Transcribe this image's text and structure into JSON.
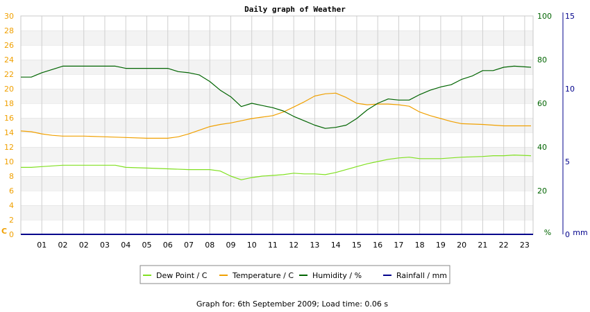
{
  "chart_data": {
    "type": "line",
    "title": "Daily graph of Weather",
    "footer": "Graph for: 6th September 2009; Load time: 0.06 s",
    "x_ticks": [
      "01",
      "02",
      "02",
      "03",
      "04",
      "05",
      "06",
      "07",
      "08",
      "09",
      "10",
      "11",
      "12",
      "13",
      "14",
      "15",
      "16",
      "17",
      "18",
      "19",
      "20",
      "21",
      "22",
      "23"
    ],
    "x_range": [
      0,
      24.4
    ],
    "left_axis": {
      "unit": "C",
      "range": [
        0,
        30
      ],
      "ticks": [
        0,
        2,
        4,
        6,
        8,
        10,
        12,
        14,
        16,
        18,
        20,
        22,
        24,
        26,
        28,
        30
      ],
      "color": "#f0a000"
    },
    "humidity_axis": {
      "unit": "%",
      "range": [
        0,
        100
      ],
      "ticks": [
        0,
        20,
        40,
        60,
        80,
        100
      ],
      "color": "#006400"
    },
    "rain_axis": {
      "unit": "mm",
      "range": [
        0,
        15
      ],
      "ticks": [
        0,
        5,
        10,
        15
      ],
      "color": "#00008b"
    },
    "grid": true,
    "legend_position": "bottom",
    "series": [
      {
        "name": "Dew Point / C",
        "color": "#80e020",
        "axis": "left",
        "x": [
          0,
          0.5,
          1,
          1.5,
          2,
          3,
          4,
          4.5,
          5,
          6,
          7,
          8,
          9,
          9.5,
          10,
          10.5,
          11,
          11.5,
          12,
          12.5,
          13,
          13.5,
          14,
          14.5,
          15,
          15.5,
          16,
          16.5,
          17,
          17.5,
          18,
          18.5,
          19,
          20,
          21,
          22,
          22.5,
          23,
          23.5,
          24.3
        ],
        "values": [
          9.2,
          9.2,
          9.3,
          9.4,
          9.5,
          9.5,
          9.5,
          9.5,
          9.2,
          9.1,
          9,
          8.9,
          8.9,
          8.7,
          8,
          7.5,
          7.8,
          8,
          8.1,
          8.2,
          8.4,
          8.3,
          8.3,
          8.2,
          8.5,
          8.9,
          9.3,
          9.7,
          10,
          10.3,
          10.5,
          10.6,
          10.4,
          10.4,
          10.6,
          10.7,
          10.8,
          10.8,
          10.9,
          10.8
        ]
      },
      {
        "name": "Temperature / C",
        "color": "#f0a000",
        "axis": "left",
        "x": [
          0,
          0.5,
          1,
          1.5,
          2,
          3,
          4,
          5,
          6,
          7,
          7.5,
          8,
          8.5,
          9,
          9.5,
          10,
          10.5,
          11,
          11.5,
          12,
          12.5,
          13,
          13.5,
          14,
          14.5,
          15,
          15.5,
          16,
          16.5,
          17,
          17.5,
          18,
          18.5,
          19,
          19.5,
          20,
          20.5,
          21,
          22,
          22.5,
          23,
          23.5,
          24.3
        ],
        "values": [
          14.2,
          14.1,
          13.8,
          13.6,
          13.5,
          13.5,
          13.4,
          13.3,
          13.2,
          13.2,
          13.4,
          13.8,
          14.3,
          14.8,
          15.1,
          15.3,
          15.6,
          15.9,
          16.1,
          16.3,
          16.8,
          17.5,
          18.2,
          19,
          19.3,
          19.4,
          18.8,
          18,
          17.8,
          17.9,
          17.9,
          17.8,
          17.6,
          16.8,
          16.3,
          15.9,
          15.5,
          15.2,
          15.1,
          15,
          14.9,
          14.9,
          14.9
        ]
      },
      {
        "name": "Humidity / %",
        "color": "#006400",
        "axis": "humidity",
        "x": [
          0,
          0.5,
          1,
          1.5,
          2,
          3,
          4,
          4.5,
          5,
          6,
          7,
          7.5,
          8,
          8.5,
          9,
          9.5,
          10,
          10.5,
          11,
          11.5,
          12,
          12.5,
          13,
          13.5,
          14,
          14.5,
          15,
          15.5,
          16,
          16.5,
          17,
          17.5,
          18,
          18.5,
          19,
          19.5,
          20,
          20.5,
          21,
          21.5,
          22,
          22.5,
          23,
          23.5,
          24.3
        ],
        "values": [
          72,
          72,
          74,
          75.5,
          77,
          77,
          77,
          77,
          76,
          76,
          76,
          74.5,
          74,
          73,
          70,
          66,
          63,
          58.5,
          60,
          59,
          58,
          56.5,
          54,
          52,
          50,
          48.5,
          49,
          50,
          53,
          57,
          60,
          62,
          61.5,
          61.5,
          64,
          66,
          67.5,
          68.5,
          71,
          72.5,
          75,
          75,
          76.5,
          77,
          76.5
        ]
      },
      {
        "name": "Rainfall / mm",
        "color": "#00008b",
        "axis": "rain",
        "x": [
          0,
          24.4
        ],
        "values": [
          0,
          0
        ]
      }
    ]
  }
}
